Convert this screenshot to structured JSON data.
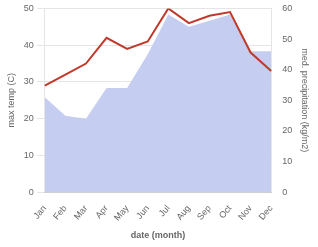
{
  "chart_data": {
    "type": "line",
    "xlabel": "date (month)",
    "ylabel": "max temp (C)",
    "y2label": "med. precipitation (kg/m2)",
    "categories": [
      "Jan",
      "Feb",
      "Mar",
      "Apr",
      "May",
      "Jun",
      "Jul",
      "Aug",
      "Sep",
      "Oct",
      "Nov",
      "Dec"
    ],
    "series": [
      {
        "type": "line",
        "color": "#c0392b",
        "values": [
          29,
          32,
          35,
          42,
          39,
          41,
          50,
          46,
          48,
          49,
          38,
          33
        ]
      },
      {
        "type": "area",
        "color": "#c5cef0",
        "axis": "y2",
        "values": [
          31,
          25,
          24,
          34,
          34,
          45,
          58,
          54,
          56,
          58,
          46,
          46
        ]
      }
    ],
    "ylim": [
      0,
      50
    ],
    "yticks": [
      0,
      10,
      20,
      30,
      40,
      50
    ],
    "y2lim": [
      0,
      60
    ],
    "y2ticks": [
      0,
      10,
      20,
      30,
      40,
      50,
      60
    ],
    "grid": true
  }
}
